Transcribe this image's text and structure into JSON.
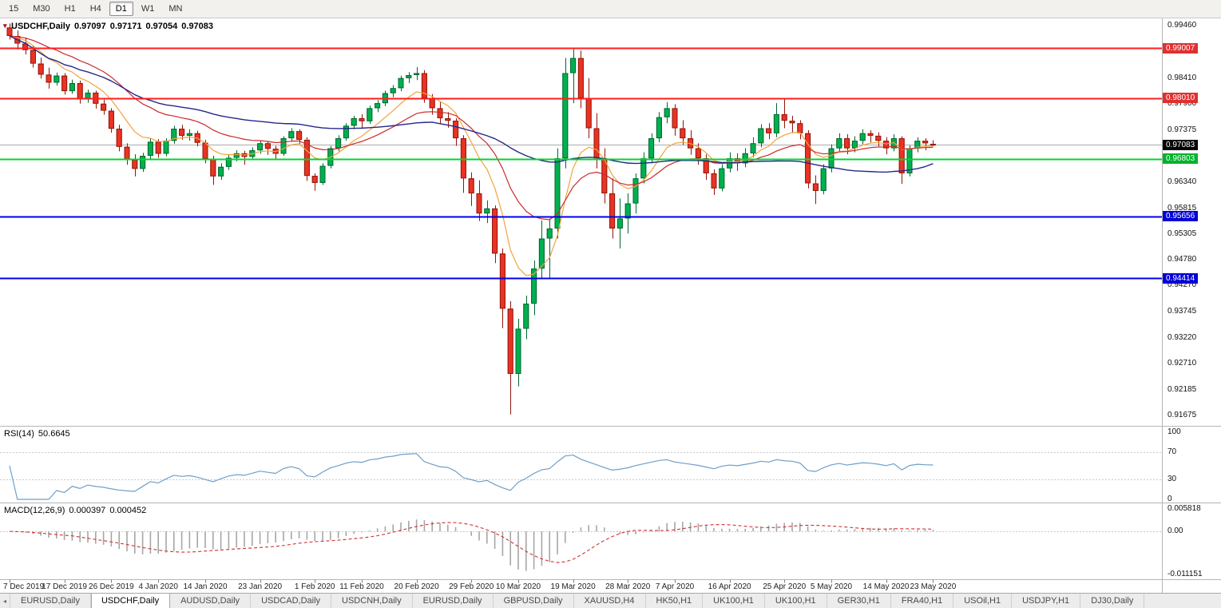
{
  "toolbar": {
    "timeframes": [
      "15",
      "M30",
      "H1",
      "H4",
      "D1",
      "W1",
      "MN"
    ],
    "active": "D1"
  },
  "chart": {
    "symbol_marker": "▾",
    "title": "USDCHF,Daily",
    "open": "0.97097",
    "high": "0.97171",
    "low": "0.97054",
    "close": "0.97083",
    "up_color": "#00B050",
    "up_border": "#00672f",
    "down_color": "#EA3323",
    "down_border": "#8f170c",
    "bid_price": 0.97083,
    "bid_line_color": "#ababab",
    "bid_box": {
      "label": "0.97083",
      "bg": "#000000",
      "fg": "#ffffff"
    },
    "hlines": [
      {
        "price": 0.99007,
        "color": "#FF1E1E",
        "width": 2,
        "label": "0.99007",
        "label_bg": "#E03131",
        "label_fg": "#ffffff"
      },
      {
        "price": 0.9801,
        "color": "#FF1E1E",
        "width": 2,
        "label": "0.98010",
        "label_bg": "#E03131",
        "label_fg": "#ffffff"
      },
      {
        "price": 0.96803,
        "color": "#00D62C",
        "width": 2,
        "label": "0.96803",
        "label_bg": "#00B32C",
        "label_fg": "#ffffff"
      },
      {
        "price": 0.95656,
        "color": "#0000EE",
        "width": 2,
        "label": "0.95656",
        "label_bg": "#0000D6",
        "label_fg": "#ffffff"
      },
      {
        "price": 0.94414,
        "color": "#0000EE",
        "width": 2,
        "label": "0.94414",
        "label_bg": "#0000D6",
        "label_fg": "#ffffff"
      }
    ],
    "price_ticks": [
      "0.99460",
      "0.98410",
      "0.97900",
      "0.97375",
      "0.96340",
      "0.95815",
      "0.95305",
      "0.94780",
      "0.94270",
      "0.93745",
      "0.93220",
      "0.92710",
      "0.92185",
      "0.91675"
    ],
    "dates": [
      {
        "label": "7 Dec 2019",
        "idx": 0
      },
      {
        "label": "17 Dec 2019",
        "idx": 7
      },
      {
        "label": "26 Dec 2019",
        "idx": 13
      },
      {
        "label": "4 Jan 2020",
        "idx": 19
      },
      {
        "label": "14 Jan 2020",
        "idx": 25
      },
      {
        "label": "23 Jan 2020",
        "idx": 32
      },
      {
        "label": "1 Feb 2020",
        "idx": 39
      },
      {
        "label": "11 Feb 2020",
        "idx": 45
      },
      {
        "label": "20 Feb 2020",
        "idx": 52
      },
      {
        "label": "29 Feb 2020",
        "idx": 59
      },
      {
        "label": "10 Mar 2020",
        "idx": 65
      },
      {
        "label": "19 Mar 2020",
        "idx": 72
      },
      {
        "label": "28 Mar 2020",
        "idx": 79
      },
      {
        "label": "7 Apr 2020",
        "idx": 85
      },
      {
        "label": "16 Apr 2020",
        "idx": 92
      },
      {
        "label": "25 Apr 2020",
        "idx": 99
      },
      {
        "label": "5 May 2020",
        "idx": 105
      },
      {
        "label": "14 May 2020",
        "idx": 112
      },
      {
        "label": "23 May 2020",
        "idx": 118
      }
    ],
    "moving_averages": [
      {
        "type": "ema",
        "period": 8,
        "color": "#F2A33C",
        "width": 1.2
      },
      {
        "type": "ema",
        "period": 20,
        "color": "#CC2A2A",
        "width": 1.2
      },
      {
        "type": "sma",
        "period": 55,
        "color": "#26268C",
        "width": 1.4
      }
    ],
    "candles": [
      [
        0.9942,
        0.995,
        0.9918,
        0.9925
      ],
      [
        0.9925,
        0.9936,
        0.9898,
        0.991
      ],
      [
        0.991,
        0.9922,
        0.9888,
        0.9897
      ],
      [
        0.9897,
        0.9905,
        0.9862,
        0.987
      ],
      [
        0.987,
        0.9882,
        0.984,
        0.9848
      ],
      [
        0.9848,
        0.9862,
        0.982,
        0.9832
      ],
      [
        0.9832,
        0.9852,
        0.9826,
        0.9846
      ],
      [
        0.9846,
        0.9851,
        0.9808,
        0.9815
      ],
      [
        0.9815,
        0.9838,
        0.981,
        0.9831
      ],
      [
        0.9831,
        0.9836,
        0.979,
        0.98
      ],
      [
        0.98,
        0.9818,
        0.9792,
        0.9812
      ],
      [
        0.9812,
        0.9816,
        0.978,
        0.979
      ],
      [
        0.979,
        0.9798,
        0.9768,
        0.9776
      ],
      [
        0.9776,
        0.9781,
        0.9732,
        0.974
      ],
      [
        0.974,
        0.9748,
        0.9695,
        0.9704
      ],
      [
        0.9704,
        0.9711,
        0.9668,
        0.9678
      ],
      [
        0.9678,
        0.9689,
        0.9645,
        0.966
      ],
      [
        0.966,
        0.9692,
        0.9654,
        0.9686
      ],
      [
        0.9686,
        0.9721,
        0.968,
        0.9714
      ],
      [
        0.9714,
        0.9719,
        0.9682,
        0.969
      ],
      [
        0.969,
        0.9721,
        0.9685,
        0.9716
      ],
      [
        0.9716,
        0.9746,
        0.971,
        0.974
      ],
      [
        0.974,
        0.9748,
        0.9718,
        0.9726
      ],
      [
        0.9726,
        0.9739,
        0.9716,
        0.9731
      ],
      [
        0.9731,
        0.9736,
        0.9705,
        0.9712
      ],
      [
        0.9712,
        0.9718,
        0.9671,
        0.968
      ],
      [
        0.968,
        0.9686,
        0.9628,
        0.9645
      ],
      [
        0.9645,
        0.9671,
        0.9638,
        0.9664
      ],
      [
        0.9664,
        0.9689,
        0.9658,
        0.9682
      ],
      [
        0.9682,
        0.9697,
        0.9675,
        0.9691
      ],
      [
        0.9691,
        0.9696,
        0.9668,
        0.9684
      ],
      [
        0.9684,
        0.9703,
        0.9678,
        0.9697
      ],
      [
        0.9697,
        0.9717,
        0.969,
        0.9711
      ],
      [
        0.9711,
        0.9715,
        0.9688,
        0.97
      ],
      [
        0.97,
        0.9706,
        0.9678,
        0.969
      ],
      [
        0.969,
        0.9725,
        0.9686,
        0.9721
      ],
      [
        0.9721,
        0.9741,
        0.9714,
        0.9735
      ],
      [
        0.9735,
        0.9739,
        0.971,
        0.9718
      ],
      [
        0.9718,
        0.9723,
        0.9636,
        0.9646
      ],
      [
        0.9646,
        0.9651,
        0.9616,
        0.9632
      ],
      [
        0.9632,
        0.9671,
        0.9628,
        0.9666
      ],
      [
        0.9666,
        0.9706,
        0.9661,
        0.9701
      ],
      [
        0.9701,
        0.9727,
        0.9695,
        0.9721
      ],
      [
        0.9721,
        0.9751,
        0.9716,
        0.9746
      ],
      [
        0.9746,
        0.9766,
        0.9739,
        0.9761
      ],
      [
        0.9761,
        0.9769,
        0.9742,
        0.9755
      ],
      [
        0.9755,
        0.9786,
        0.975,
        0.9781
      ],
      [
        0.9781,
        0.9797,
        0.9773,
        0.9791
      ],
      [
        0.9791,
        0.9816,
        0.9785,
        0.9811
      ],
      [
        0.9811,
        0.9827,
        0.9803,
        0.9821
      ],
      [
        0.9821,
        0.9846,
        0.9815,
        0.9841
      ],
      [
        0.9841,
        0.9853,
        0.9831,
        0.9847
      ],
      [
        0.9847,
        0.9863,
        0.9837,
        0.9851
      ],
      [
        0.9851,
        0.9857,
        0.9792,
        0.9801
      ],
      [
        0.9801,
        0.9809,
        0.9768,
        0.9781
      ],
      [
        0.9781,
        0.9793,
        0.975,
        0.9761
      ],
      [
        0.9761,
        0.9773,
        0.9742,
        0.9756
      ],
      [
        0.9756,
        0.9761,
        0.9706,
        0.9721
      ],
      [
        0.9721,
        0.9727,
        0.9612,
        0.9641
      ],
      [
        0.9641,
        0.9653,
        0.9586,
        0.9611
      ],
      [
        0.9611,
        0.9637,
        0.9556,
        0.9571
      ],
      [
        0.9571,
        0.9597,
        0.9552,
        0.9581
      ],
      [
        0.9581,
        0.9587,
        0.9472,
        0.9491
      ],
      [
        0.9491,
        0.9501,
        0.9342,
        0.9381
      ],
      [
        0.9381,
        0.9396,
        0.917,
        0.9251
      ],
      [
        0.9251,
        0.9361,
        0.9226,
        0.9341
      ],
      [
        0.9341,
        0.9407,
        0.932,
        0.9391
      ],
      [
        0.9391,
        0.9477,
        0.9368,
        0.9461
      ],
      [
        0.9461,
        0.9557,
        0.9441,
        0.9521
      ],
      [
        0.9521,
        0.9561,
        0.9441,
        0.9541
      ],
      [
        0.9541,
        0.9701,
        0.9521,
        0.9681
      ],
      [
        0.9681,
        0.9881,
        0.9661,
        0.9851
      ],
      [
        0.9851,
        0.9901,
        0.9791,
        0.9881
      ],
      [
        0.9881,
        0.9896,
        0.9781,
        0.9801
      ],
      [
        0.9801,
        0.9841,
        0.9721,
        0.9741
      ],
      [
        0.9741,
        0.9771,
        0.9661,
        0.9681
      ],
      [
        0.9681,
        0.9701,
        0.9591,
        0.9611
      ],
      [
        0.9611,
        0.9641,
        0.9521,
        0.9541
      ],
      [
        0.9541,
        0.9601,
        0.9501,
        0.9561
      ],
      [
        0.9561,
        0.9611,
        0.9531,
        0.9591
      ],
      [
        0.9591,
        0.9651,
        0.9571,
        0.9641
      ],
      [
        0.9641,
        0.9693,
        0.9631,
        0.9681
      ],
      [
        0.9681,
        0.9731,
        0.9671,
        0.9721
      ],
      [
        0.9721,
        0.9773,
        0.9713,
        0.9763
      ],
      [
        0.9763,
        0.9793,
        0.9751,
        0.9781
      ],
      [
        0.9781,
        0.9789,
        0.9726,
        0.9741
      ],
      [
        0.9741,
        0.9757,
        0.9708,
        0.9721
      ],
      [
        0.9721,
        0.9737,
        0.9688,
        0.9701
      ],
      [
        0.9701,
        0.9711,
        0.9668,
        0.9681
      ],
      [
        0.9681,
        0.9689,
        0.9638,
        0.9651
      ],
      [
        0.9651,
        0.9659,
        0.9608,
        0.9621
      ],
      [
        0.9621,
        0.9669,
        0.9615,
        0.9661
      ],
      [
        0.9661,
        0.9693,
        0.9653,
        0.9681
      ],
      [
        0.9681,
        0.9691,
        0.9656,
        0.9671
      ],
      [
        0.9671,
        0.9701,
        0.9663,
        0.9691
      ],
      [
        0.9691,
        0.9723,
        0.9683,
        0.9711
      ],
      [
        0.9711,
        0.9749,
        0.9703,
        0.9741
      ],
      [
        0.9741,
        0.9751,
        0.9719,
        0.9731
      ],
      [
        0.9731,
        0.9791,
        0.9723,
        0.9769
      ],
      [
        0.9769,
        0.9801,
        0.9741,
        0.9756
      ],
      [
        0.9756,
        0.9766,
        0.9731,
        0.9751
      ],
      [
        0.9751,
        0.9757,
        0.9719,
        0.9731
      ],
      [
        0.9731,
        0.9737,
        0.9621,
        0.9631
      ],
      [
        0.9631,
        0.9647,
        0.959,
        0.9616
      ],
      [
        0.9616,
        0.9669,
        0.9609,
        0.9661
      ],
      [
        0.9661,
        0.9709,
        0.9653,
        0.9701
      ],
      [
        0.9701,
        0.9731,
        0.9693,
        0.9721
      ],
      [
        0.9721,
        0.9729,
        0.9689,
        0.9701
      ],
      [
        0.9701,
        0.9725,
        0.9693,
        0.9716
      ],
      [
        0.9716,
        0.9739,
        0.9709,
        0.9731
      ],
      [
        0.9731,
        0.9737,
        0.9713,
        0.9726
      ],
      [
        0.9726,
        0.9733,
        0.9705,
        0.9716
      ],
      [
        0.9716,
        0.9723,
        0.9689,
        0.9701
      ],
      [
        0.9701,
        0.9729,
        0.9695,
        0.9721
      ],
      [
        0.9721,
        0.9725,
        0.963,
        0.9651
      ],
      [
        0.9651,
        0.9707,
        0.9645,
        0.9701
      ],
      [
        0.9701,
        0.9723,
        0.9693,
        0.9716
      ],
      [
        0.9716,
        0.9721,
        0.9697,
        0.9711
      ],
      [
        0.97097,
        0.97171,
        0.97054,
        0.97083
      ]
    ]
  },
  "rsi": {
    "name": "RSI(14)",
    "value": "50.6645",
    "period": 14,
    "color": "#6F9FC8",
    "levels": [
      {
        "label": "100",
        "value": 100
      },
      {
        "label": "70",
        "value": 70
      },
      {
        "label": "30",
        "value": 30
      },
      {
        "label": "0",
        "value": 0
      }
    ],
    "level_lines": [
      70,
      30
    ]
  },
  "macd": {
    "name": "MACD(12,26,9)",
    "value_main": "0.000397",
    "value_signal": "0.000452",
    "fast": 12,
    "slow": 26,
    "signal": 9,
    "hist_color": "#A6A6A6",
    "signal_color": "#D32F2F",
    "scale": {
      "top": {
        "label": "0.005818",
        "value": 0.005818
      },
      "zero": {
        "label": "0.00",
        "value": 0
      },
      "bottom": {
        "label": "-0.011151",
        "value": -0.011151
      }
    }
  },
  "tabs": {
    "scroll_left_icon": "◂",
    "active_index": 1,
    "items": [
      "EURUSD,Daily",
      "USDCHF,Daily",
      "AUDUSD,Daily",
      "USDCAD,Daily",
      "USDCNH,Daily",
      "EURUSD,Daily",
      "GBPUSD,Daily",
      "XAUUSD,H4",
      "HK50,H1",
      "UK100,H1",
      "UK100,H1",
      "GER30,H1",
      "FRA40,H1",
      "USOil,H1",
      "USDJPY,H1",
      "DJ30,Daily"
    ]
  },
  "frame": {
    "separator_color": "#b5b5b5",
    "axis_border_color": "#b5b5b5",
    "date_tick_color": "#808080"
  }
}
